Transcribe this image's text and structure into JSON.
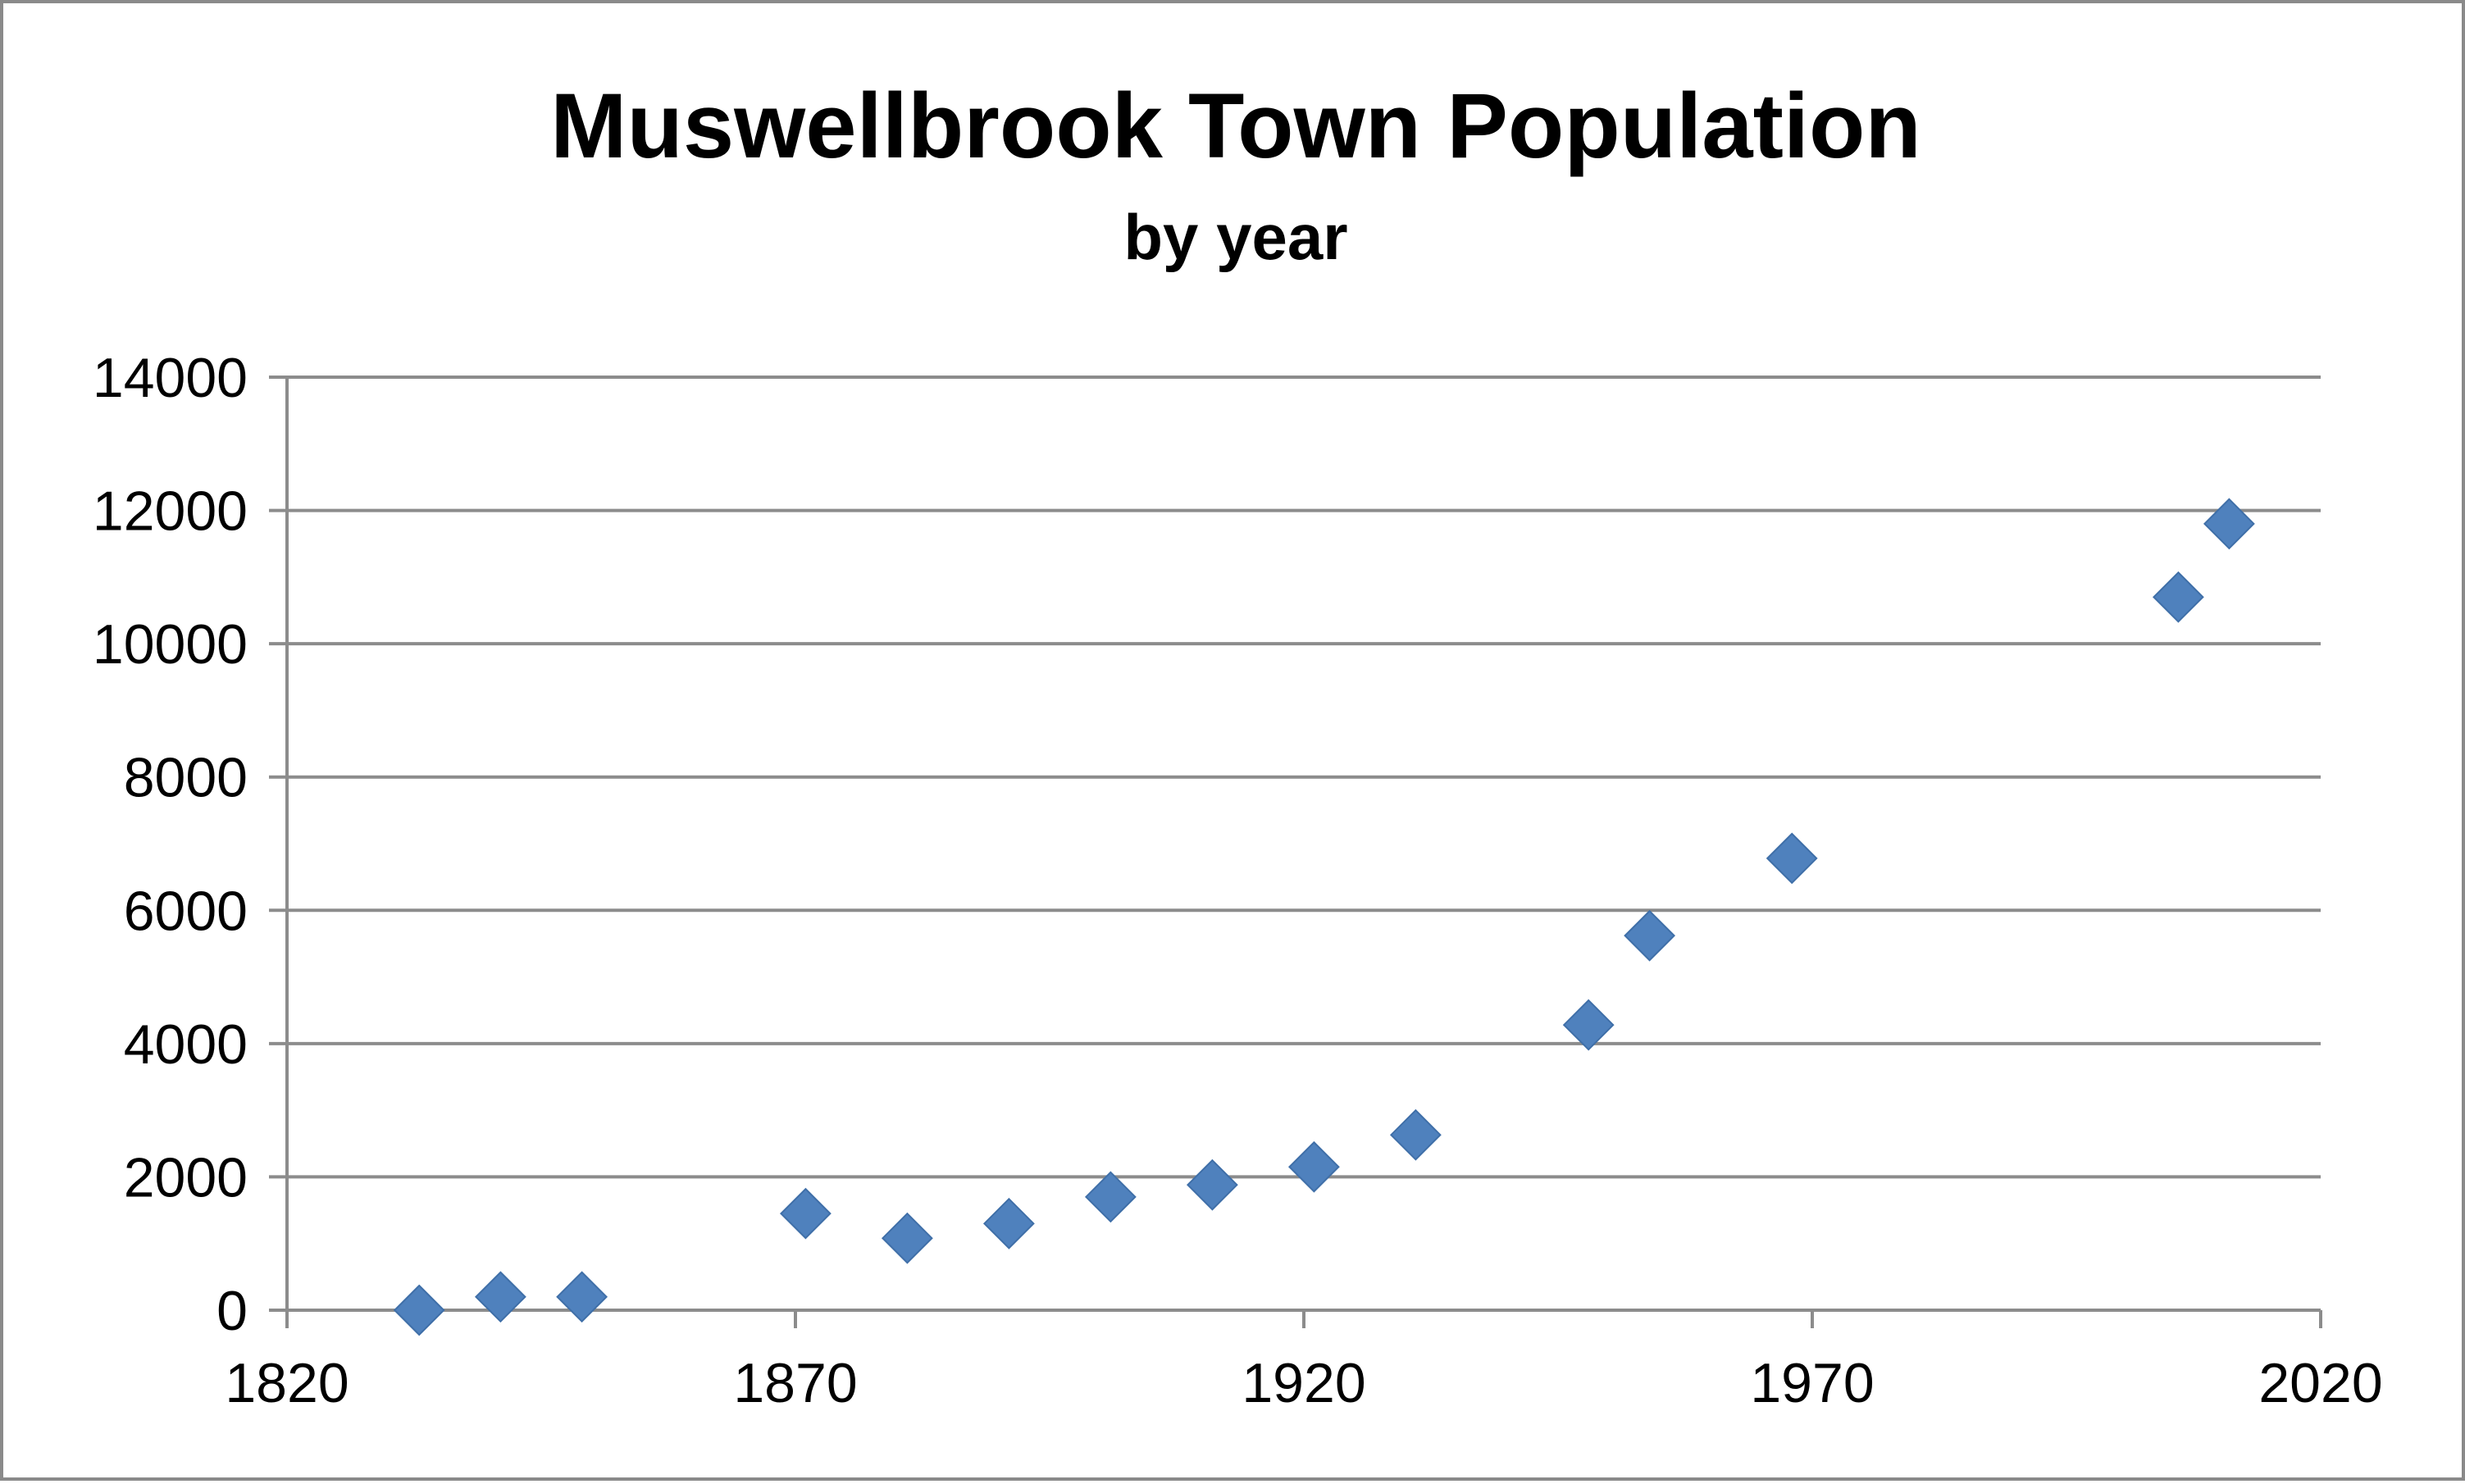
{
  "chart_data": {
    "type": "scatter",
    "title": "Muswellbrook Town Population",
    "subtitle": "by year",
    "xlabel": "",
    "ylabel": "",
    "xlim": [
      1820,
      2020
    ],
    "ylim": [
      0,
      14000
    ],
    "x_ticks": [
      1820,
      1870,
      1920,
      1970,
      2020
    ],
    "y_ticks": [
      0,
      2000,
      4000,
      6000,
      8000,
      10000,
      12000,
      14000
    ],
    "grid": "horizontal",
    "legend": "none",
    "marker": "diamond",
    "color": "#4f81bd",
    "series": [
      {
        "x": [
          1833,
          1841,
          1849,
          1871,
          1881,
          1891,
          1901,
          1911,
          1921,
          1931,
          1948,
          1954,
          1968,
          2006,
          2011
        ],
        "y": [
          0,
          200,
          200,
          1450,
          1080,
          1300,
          1700,
          1880,
          2150,
          2630,
          4280,
          5620,
          6780,
          10700,
          11800
        ]
      }
    ]
  }
}
